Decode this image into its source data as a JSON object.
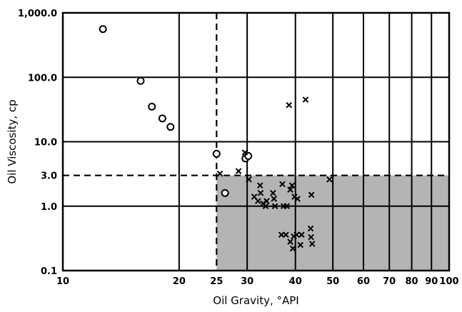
{
  "chart_data": {
    "type": "scatter",
    "xlabel": "Oil Gravity, °API",
    "ylabel": "Oil Viscosity, cp",
    "xscale": "log",
    "yscale": "log",
    "xlim": [
      10,
      100
    ],
    "ylim": [
      0.1,
      1000
    ],
    "x_ticks": [
      10,
      20,
      25,
      30,
      40,
      50,
      60,
      70,
      80,
      90,
      100
    ],
    "x_tick_labels": [
      "10",
      "20",
      "25",
      "30",
      "40",
      "50",
      "60",
      "70",
      "80",
      "90",
      "100"
    ],
    "y_ticks": [
      0.1,
      1.0,
      3.0,
      10.0,
      100.0,
      1000.0
    ],
    "y_tick_labels": [
      "0.1",
      "1.0",
      "3.0",
      "10.0",
      "100.0",
      "1,000.0"
    ],
    "grid": true,
    "shaded_region": {
      "x_min": 25,
      "x_max": 100,
      "y_min": 0.1,
      "y_max": 3.0,
      "color": "#b4b4b4"
    },
    "reference_lines": [
      {
        "axis": "x",
        "value": 25,
        "style": "dashed"
      },
      {
        "axis": "y",
        "value": 3.0,
        "style": "dashed"
      }
    ],
    "series": [
      {
        "marker": "circle",
        "points": [
          {
            "x": 12.7,
            "y": 560
          },
          {
            "x": 15.9,
            "y": 88
          },
          {
            "x": 17.0,
            "y": 35
          },
          {
            "x": 18.1,
            "y": 23
          },
          {
            "x": 19.0,
            "y": 17
          },
          {
            "x": 25.0,
            "y": 6.5
          },
          {
            "x": 29.7,
            "y": 5.5
          },
          {
            "x": 30.2,
            "y": 6.0
          },
          {
            "x": 26.3,
            "y": 1.6
          }
        ]
      },
      {
        "marker": "x",
        "points": [
          {
            "x": 38.5,
            "y": 37
          },
          {
            "x": 42.5,
            "y": 45
          },
          {
            "x": 25.5,
            "y": 3.2
          },
          {
            "x": 28.5,
            "y": 3.5
          },
          {
            "x": 29.6,
            "y": 6.8
          },
          {
            "x": 30.3,
            "y": 2.6
          },
          {
            "x": 31.3,
            "y": 1.4
          },
          {
            "x": 32.0,
            "y": 1.2
          },
          {
            "x": 32.4,
            "y": 2.1
          },
          {
            "x": 32.5,
            "y": 1.6
          },
          {
            "x": 33.0,
            "y": 1.1
          },
          {
            "x": 33.5,
            "y": 1.0
          },
          {
            "x": 33.7,
            "y": 1.2
          },
          {
            "x": 35.0,
            "y": 1.6
          },
          {
            "x": 35.2,
            "y": 1.3
          },
          {
            "x": 35.4,
            "y": 1.0
          },
          {
            "x": 37.0,
            "y": 2.2
          },
          {
            "x": 37.3,
            "y": 1.0
          },
          {
            "x": 38.0,
            "y": 1.0
          },
          {
            "x": 38.8,
            "y": 1.8
          },
          {
            "x": 39.2,
            "y": 2.1
          },
          {
            "x": 39.8,
            "y": 1.4
          },
          {
            "x": 40.5,
            "y": 1.3
          },
          {
            "x": 44.0,
            "y": 1.5
          },
          {
            "x": 49.0,
            "y": 2.6
          },
          {
            "x": 36.8,
            "y": 0.36
          },
          {
            "x": 37.8,
            "y": 0.36
          },
          {
            "x": 38.8,
            "y": 0.28
          },
          {
            "x": 39.6,
            "y": 0.34
          },
          {
            "x": 39.4,
            "y": 0.22
          },
          {
            "x": 40.3,
            "y": 0.36
          },
          {
            "x": 41.2,
            "y": 0.25
          },
          {
            "x": 41.5,
            "y": 0.36
          },
          {
            "x": 43.8,
            "y": 0.45
          },
          {
            "x": 43.9,
            "y": 0.33
          },
          {
            "x": 44.2,
            "y": 0.26
          }
        ]
      }
    ]
  }
}
